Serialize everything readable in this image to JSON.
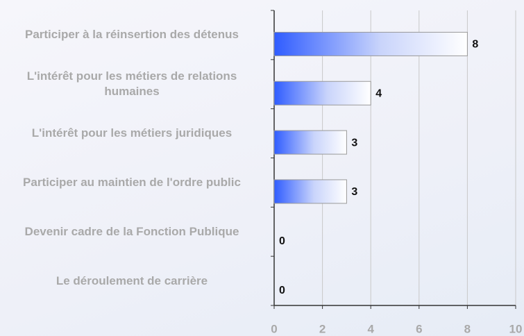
{
  "chart_data": {
    "type": "bar",
    "orientation": "horizontal",
    "categories": [
      "Participer à la réinsertion des détenus",
      "L'intérêt pour les métiers de relations humaines",
      "L'intérêt pour les métiers juridiques",
      "Participer au maintien de l'ordre public",
      "Devenir cadre de la Fonction Publique",
      "Le déroulement de carrière"
    ],
    "values": [
      8,
      4,
      3,
      3,
      0,
      0
    ],
    "color": "#3366ff",
    "xlim": [
      0,
      10
    ],
    "xticks": [
      0,
      2,
      4,
      6,
      8,
      10
    ],
    "grid": true
  }
}
